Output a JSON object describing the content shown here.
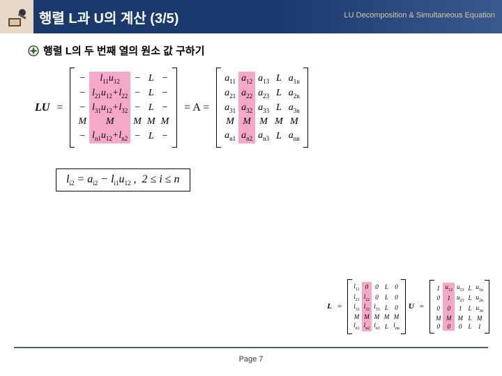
{
  "header": {
    "title": "행렬 L과 U의 계산 (3/5)",
    "subtitle": "LU Decomposition & Simultaneous Equation"
  },
  "bullet": {
    "text": "행렬 L의 두 번째 열의 원소 값 구하기"
  },
  "main_eq": {
    "lhs": "LU",
    "eq1": "=",
    "matL": {
      "rows": [
        [
          "−",
          "l<sub class='sub'>11</sub>u<sub class='sub'>12</sub>",
          "−",
          "L",
          "−"
        ],
        [
          "−",
          "l<sub class='sub'>21</sub>u<sub class='sub'>12</sub>+l<sub class='sub'>22</sub>",
          "−",
          "L",
          "−"
        ],
        [
          "−",
          "l<sub class='sub'>31</sub>u<sub class='sub'>12</sub>+l<sub class='sub'>32</sub>",
          "−",
          "L",
          "−"
        ],
        [
          "M",
          "M",
          "M",
          "M",
          "M"
        ],
        [
          "−",
          "l<sub class='sub'>n1</sub>u<sub class='sub'>12</sub>+l<sub class='sub'>n2</sub>",
          "−",
          "L",
          "−"
        ]
      ],
      "hl_col": 1
    },
    "mid": "= A =",
    "matA": {
      "rows": [
        [
          "a<sub class='sub'>11</sub>",
          "a<sub class='sub'>12</sub>",
          "a<sub class='sub'>13</sub>",
          "L",
          "a<sub class='sub'>1n</sub>"
        ],
        [
          "a<sub class='sub'>21</sub>",
          "a<sub class='sub'>22</sub>",
          "a<sub class='sub'>23</sub>",
          "L",
          "a<sub class='sub'>2n</sub>"
        ],
        [
          "a<sub class='sub'>31</sub>",
          "a<sub class='sub'>32</sub>",
          "a<sub class='sub'>33</sub>",
          "L",
          "a<sub class='sub'>3n</sub>"
        ],
        [
          "M",
          "M",
          "M",
          "M",
          "M"
        ],
        [
          "a<sub class='sub'>n1</sub>",
          "a<sub class='sub'>n2</sub>",
          "a<sub class='sub'>n3</sub>",
          "L",
          "a<sub class='sub'>nn</sub>"
        ]
      ],
      "hl_col": 1
    }
  },
  "formula": "l<sub class='sub'>i2</sub> = a<sub class='sub'>i2</sub> − l<sub class='sub'>i1</sub>u<sub class='sub'>12</sub> ,&nbsp; 2 ≤ i ≤ n",
  "small": {
    "L": "L",
    "eq": "=",
    "matL": {
      "rows": [
        [
          "l<sub class='sub'>11</sub>",
          "0",
          "0",
          "L",
          "0"
        ],
        [
          "l<sub class='sub'>21</sub>",
          "l<sub class='sub'>22</sub>",
          "0",
          "L",
          "0"
        ],
        [
          "l<sub class='sub'>31</sub>",
          "l<sub class='sub'>32</sub>",
          "l<sub class='sub'>33</sub>",
          "L",
          "0"
        ],
        [
          "M",
          "M",
          "M",
          "M",
          "M"
        ],
        [
          "l<sub class='sub'>n1</sub>",
          "l<sub class='sub'>n2</sub>",
          "l<sub class='sub'>n3</sub>",
          "L",
          "l<sub class='sub'>nn</sub>"
        ]
      ],
      "hl_col": 1
    },
    "U": "U",
    "matU": {
      "rows": [
        [
          "1",
          "u<sub class='sub'>12</sub>",
          "u<sub class='sub'>13</sub>",
          "L",
          "u<sub class='sub'>1n</sub>"
        ],
        [
          "0",
          "1",
          "u<sub class='sub'>23</sub>",
          "L",
          "u<sub class='sub'>2n</sub>"
        ],
        [
          "0",
          "0",
          "1",
          "L",
          "u<sub class='sub'>3n</sub>"
        ],
        [
          "M",
          "M",
          "M",
          "L",
          "M"
        ],
        [
          "0",
          "0",
          "0",
          "L",
          "1"
        ]
      ],
      "hl_col": 1
    }
  },
  "footer": {
    "page": "Page 7"
  }
}
